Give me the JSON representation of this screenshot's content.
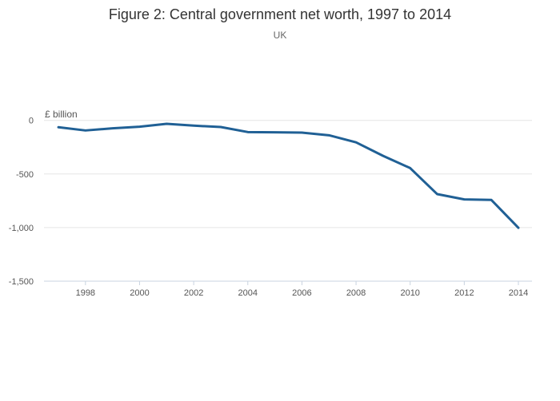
{
  "chart_data": {
    "type": "line",
    "title": "Figure 2: Central government net worth, 1997 to 2014",
    "subtitle": "UK",
    "ylabel": "£ billion",
    "xlabel": "",
    "ylim": [
      -1500,
      0
    ],
    "xlim": [
      1996.5,
      2014.5
    ],
    "yticks": [
      0,
      -500,
      -1000,
      -1500
    ],
    "ytick_labels": [
      "0",
      "-500",
      "-1,000",
      "-1,500"
    ],
    "xticks": [
      1998,
      2000,
      2002,
      2004,
      2006,
      2008,
      2010,
      2012,
      2014
    ],
    "xtick_labels": [
      "1998",
      "2000",
      "2002",
      "2004",
      "2006",
      "2008",
      "2010",
      "2012",
      "2014"
    ],
    "grid": true,
    "series": [
      {
        "name": "Central government net worth",
        "color": "#206095",
        "x": [
          1997,
          1998,
          1999,
          2000,
          2001,
          2002,
          2003,
          2004,
          2005,
          2006,
          2007,
          2008,
          2009,
          2010,
          2011,
          2012,
          2013,
          2014
        ],
        "values": [
          -64,
          -94,
          -74,
          -59,
          -32,
          -49,
          -62,
          -109,
          -111,
          -114,
          -139,
          -205,
          -331,
          -445,
          -688,
          -737,
          -742,
          -1002
        ]
      }
    ]
  }
}
